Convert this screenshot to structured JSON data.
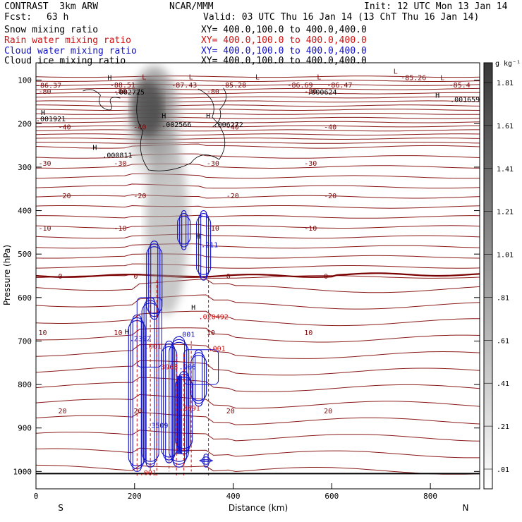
{
  "header": {
    "model": "CONTRAST  3km ARW",
    "org": "NCAR/MMM",
    "init": "Init: 12 UTC Mon 13 Jan 14",
    "fcst_label": "Fcst:",
    "fcst_value": "63 h",
    "valid": "Valid: 03 UTC Thu 16 Jan 14 (13 ChT Thu 16 Jan 14)"
  },
  "legend": [
    {
      "name": "Snow mixing ratio",
      "xy": "XY= 400.0,100.0 to 400.0,400.0",
      "color": "#000000"
    },
    {
      "name": "Rain water mixing ratio",
      "xy": "XY= 400.0,100.0 to 400.0,400.0",
      "color": "#d01010"
    },
    {
      "name": "Cloud water mixing ratio",
      "xy": "XY= 400.0,100.0 to 400.0,400.0",
      "color": "#1010c8"
    },
    {
      "name": "Cloud ice mixing ratio",
      "xy": "XY= 400.0,100.0 to 400.0,400.0",
      "color": "#000000"
    }
  ],
  "chart_data": {
    "type": "cross-section",
    "title": "CONTRAST 3km ARW vertical cross-section",
    "xlabel": "Distance (km)",
    "ylabel": "Pressure (hPa)",
    "xlim": [
      0,
      900
    ],
    "ylim": [
      1040,
      60
    ],
    "xticks": [
      0,
      200,
      400,
      600,
      800
    ],
    "yticks": [
      100,
      200,
      300,
      400,
      500,
      600,
      700,
      800,
      900,
      1000
    ],
    "x_end_labels": {
      "left": "S",
      "right": "N"
    },
    "colorbar": {
      "unit": "g kg⁻¹",
      "ticks": [
        ".01",
        ".21",
        ".41",
        ".61",
        ".81",
        "1.01",
        "1.21",
        "1.41",
        "1.61",
        "1.81"
      ]
    },
    "temperature_contours": [
      {
        "label": "-80",
        "p": 125
      },
      {
        "label": "-40",
        "p": 207
      },
      {
        "label": "-30",
        "p": 290
      },
      {
        "label": "-20",
        "p": 365
      },
      {
        "label": "-10",
        "p": 440
      },
      {
        "label": "0",
        "p": 550
      },
      {
        "label": "10",
        "p": 680
      },
      {
        "label": "20",
        "p": 860
      }
    ],
    "annotations": [
      {
        "text": "-86.37",
        "x": 0,
        "p": 118,
        "color": "#7a0a0a"
      },
      {
        "text": "-88.51",
        "x": 150,
        "p": 117,
        "color": "#7a0a0a"
      },
      {
        "text": "-87.43",
        "x": 275,
        "p": 117,
        "color": "#7a0a0a"
      },
      {
        "text": "-85.28",
        "x": 375,
        "p": 117,
        "color": "#7a0a0a"
      },
      {
        "text": "-86.69",
        "x": 510,
        "p": 117,
        "color": "#7a0a0a"
      },
      {
        "text": "-86.47",
        "x": 590,
        "p": 117,
        "color": "#7a0a0a"
      },
      {
        "text": "-85.26",
        "x": 740,
        "p": 100,
        "color": "#7a0a0a"
      },
      {
        "text": "-85.4",
        "x": 838,
        "p": 117,
        "color": "#7a0a0a"
      },
      {
        "text": ".002725",
        "x": 160,
        "p": 133,
        "color": "#000000"
      },
      {
        "text": ".000624",
        "x": 550,
        "p": 133,
        "color": "#000000"
      },
      {
        "text": ".001659",
        "x": 840,
        "p": 150,
        "color": "#000000"
      },
      {
        "text": ".001921",
        "x": 0,
        "p": 195,
        "color": "#000000"
      },
      {
        "text": ".002566",
        "x": 255,
        "p": 208,
        "color": "#000000"
      },
      {
        "text": ".006272",
        "x": 360,
        "p": 208,
        "color": "#000000"
      },
      {
        "text": ".000811",
        "x": 135,
        "p": 278,
        "color": "#000000"
      },
      {
        "text": ".211",
        "x": 335,
        "p": 484,
        "color": "#1010c8"
      },
      {
        "text": ".020492",
        "x": 330,
        "p": 650,
        "color": "#d01010"
      },
      {
        "text": ".2392",
        "x": 190,
        "p": 700,
        "color": "#1010c8"
      },
      {
        "text": ".001",
        "x": 288,
        "p": 690,
        "color": "#1010c8"
      },
      {
        "text": ".001",
        "x": 350,
        "p": 723,
        "color": "#d01010"
      },
      {
        "text": ".001",
        "x": 220,
        "p": 718,
        "color": "#d01010"
      },
      {
        "text": ".3968",
        "x": 245,
        "p": 765,
        "color": "#d01010"
      },
      {
        "text": ".906",
        "x": 290,
        "p": 765,
        "color": "#1010c8"
      },
      {
        "text": ".3691",
        "x": 290,
        "p": 860,
        "color": "#d01010"
      },
      {
        "text": ".3509",
        "x": 225,
        "p": 900,
        "color": "#1010c8"
      },
      {
        "text": ".001",
        "x": 210,
        "p": 1008,
        "color": "#d01010"
      }
    ],
    "highs": [
      {
        "x": 145,
        "p": 100
      },
      {
        "x": 10,
        "p": 180
      },
      {
        "x": 255,
        "p": 187
      },
      {
        "x": 345,
        "p": 187
      },
      {
        "x": 115,
        "p": 260
      },
      {
        "x": 325,
        "p": 465
      },
      {
        "x": 315,
        "p": 628
      },
      {
        "x": 180,
        "p": 684
      },
      {
        "x": 810,
        "p": 140
      }
    ],
    "lows": [
      {
        "x": 215,
        "p": 98
      },
      {
        "x": 310,
        "p": 98
      },
      {
        "x": 445,
        "p": 98
      },
      {
        "x": 570,
        "p": 98
      },
      {
        "x": 725,
        "p": 85
      },
      {
        "x": 820,
        "p": 100
      }
    ],
    "surface_pressure": 1005
  }
}
